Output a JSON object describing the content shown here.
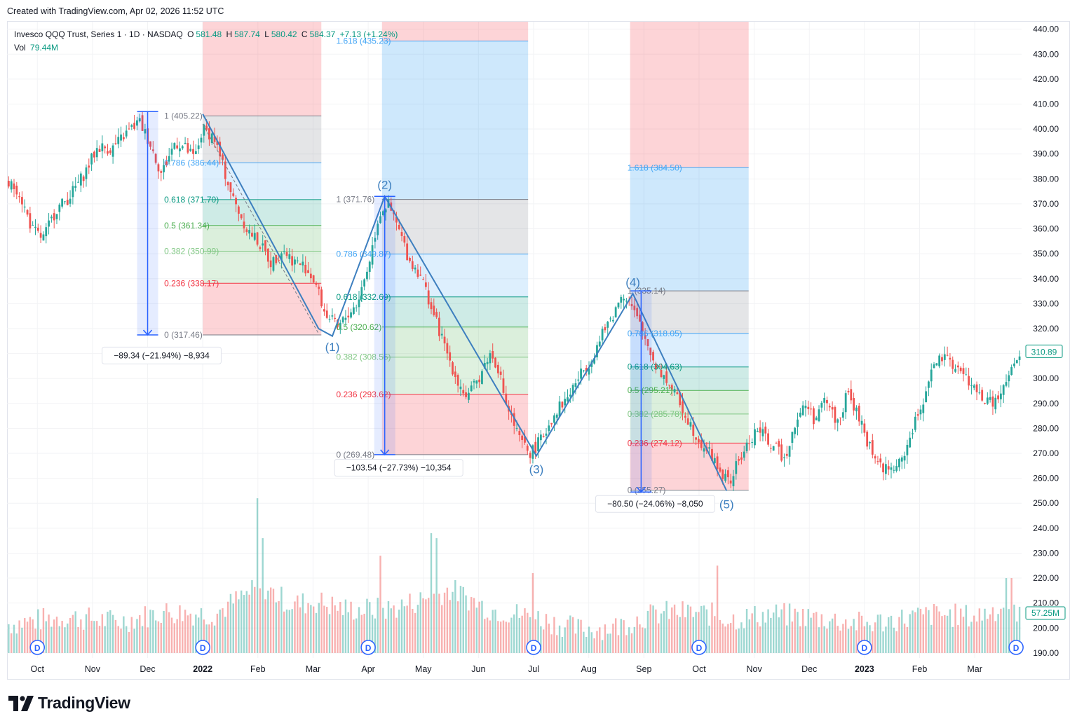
{
  "header": {
    "created": "Created with TradingView.com, Apr 02, 2026 11:52 UTC"
  },
  "legend": {
    "symbol": "Invesco QQQ Trust, Series 1 · 1D · NASDAQ",
    "o_label": "O",
    "o": "581.48",
    "h_label": "H",
    "h": "587.74",
    "l_label": "L",
    "l": "580.42",
    "c_label": "C",
    "c": "584.37",
    "change": "+7.13 (+1.24%)",
    "vol_label": "Vol",
    "vol": "79.44M"
  },
  "colors": {
    "up": "#26a69a",
    "down": "#ef5350",
    "wave": "#3d7fbf",
    "blue_zone": "#d0e6fb",
    "red_zone": "#fcd5d3",
    "grey_zone": "#e3e3e3",
    "price_label": "#089981",
    "measure": "#2962ff"
  },
  "brand": {
    "name": "TradingView"
  },
  "chart_data": {
    "type": "candlestick",
    "title": "Invesco QQQ Trust, Series 1 · 1D · NASDAQ",
    "x_ticks": [
      "Oct",
      "Nov",
      "Dec",
      "2022",
      "Feb",
      "Mar",
      "Apr",
      "May",
      "Jun",
      "Jul",
      "Aug",
      "Sep",
      "Oct",
      "Nov",
      "Dec",
      "2023",
      "Feb",
      "Mar"
    ],
    "x_tick_months": [
      0,
      1,
      2,
      3,
      4,
      5,
      6,
      7,
      8,
      9,
      10,
      11,
      12,
      13,
      14,
      15,
      16,
      17
    ],
    "x_range_months": [
      -0.55,
      17.85
    ],
    "y_ticks": [
      "440.00",
      "430.00",
      "420.00",
      "410.00",
      "400.00",
      "390.00",
      "380.00",
      "370.00",
      "360.00",
      "350.00",
      "340.00",
      "330.00",
      "320.00",
      "310.00",
      "300.00",
      "290.00",
      "280.00",
      "270.00",
      "260.00",
      "250.00",
      "240.00",
      "230.00",
      "220.00",
      "210.00",
      "200.00",
      "190.00"
    ],
    "y_range": [
      188,
      443
    ],
    "last_price": {
      "label": "310.89",
      "value": 310.89
    },
    "last_volume": {
      "label": "57.25M",
      "value": 57.25
    },
    "price_path": [
      [
        -0.55,
        378
      ],
      [
        -0.35,
        376
      ],
      [
        -0.1,
        360
      ],
      [
        0.1,
        356
      ],
      [
        0.35,
        368
      ],
      [
        0.55,
        372
      ],
      [
        0.85,
        382
      ],
      [
        1.1,
        393
      ],
      [
        1.35,
        392
      ],
      [
        1.6,
        398
      ],
      [
        1.85,
        403
      ],
      [
        2.05,
        394
      ],
      [
        2.25,
        382
      ],
      [
        2.5,
        395
      ],
      [
        2.7,
        392
      ],
      [
        2.85,
        388
      ],
      [
        3.0,
        400
      ],
      [
        3.2,
        397
      ],
      [
        3.35,
        386
      ],
      [
        3.55,
        372
      ],
      [
        3.8,
        360
      ],
      [
        4.0,
        355
      ],
      [
        4.25,
        346
      ],
      [
        4.45,
        352
      ],
      [
        4.65,
        347
      ],
      [
        4.85,
        345
      ],
      [
        5.05,
        338
      ],
      [
        5.2,
        327
      ],
      [
        5.45,
        320
      ],
      [
        5.6,
        325
      ],
      [
        5.8,
        330
      ],
      [
        6.0,
        345
      ],
      [
        6.2,
        366
      ],
      [
        6.35,
        370
      ],
      [
        6.55,
        360
      ],
      [
        6.75,
        347
      ],
      [
        6.95,
        342
      ],
      [
        7.15,
        328
      ],
      [
        7.4,
        312
      ],
      [
        7.6,
        300
      ],
      [
        7.8,
        292
      ],
      [
        8.0,
        300
      ],
      [
        8.2,
        310
      ],
      [
        8.35,
        305
      ],
      [
        8.5,
        290
      ],
      [
        8.75,
        275
      ],
      [
        8.95,
        270
      ],
      [
        9.15,
        276
      ],
      [
        9.4,
        287
      ],
      [
        9.6,
        292
      ],
      [
        9.8,
        300
      ],
      [
        10.05,
        308
      ],
      [
        10.3,
        320
      ],
      [
        10.5,
        328
      ],
      [
        10.6,
        335
      ],
      [
        10.75,
        330
      ],
      [
        10.95,
        320
      ],
      [
        11.2,
        306
      ],
      [
        11.45,
        298
      ],
      [
        11.7,
        288
      ],
      [
        11.95,
        277
      ],
      [
        12.2,
        270
      ],
      [
        12.4,
        262
      ],
      [
        12.55,
        258
      ],
      [
        12.7,
        266
      ],
      [
        12.85,
        272
      ],
      [
        13.05,
        280
      ],
      [
        13.3,
        274
      ],
      [
        13.55,
        268
      ],
      [
        13.75,
        283
      ],
      [
        13.95,
        290
      ],
      [
        14.1,
        283
      ],
      [
        14.3,
        292
      ],
      [
        14.5,
        282
      ],
      [
        14.7,
        294
      ],
      [
        14.9,
        284
      ],
      [
        15.05,
        275
      ],
      [
        15.25,
        266
      ],
      [
        15.45,
        263
      ],
      [
        15.65,
        266
      ],
      [
        15.85,
        278
      ],
      [
        16.05,
        290
      ],
      [
        16.2,
        303
      ],
      [
        16.4,
        308
      ],
      [
        16.6,
        306
      ],
      [
        16.85,
        300
      ],
      [
        17.05,
        294
      ],
      [
        17.25,
        290
      ],
      [
        17.45,
        292
      ],
      [
        17.6,
        300
      ],
      [
        17.75,
        306
      ],
      [
        17.85,
        310
      ]
    ],
    "volume_axis_max": 250,
    "volume_path": [
      [
        -0.55,
        200
      ],
      [
        0.5,
        203
      ],
      [
        1.5,
        201
      ],
      [
        2.3,
        205
      ],
      [
        3.2,
        204
      ],
      [
        3.8,
        212
      ],
      [
        4.1,
        215
      ],
      [
        4.6,
        208
      ],
      [
        5.1,
        209
      ],
      [
        5.6,
        206
      ],
      [
        6.4,
        206
      ],
      [
        7.0,
        210
      ],
      [
        7.5,
        214
      ],
      [
        8.2,
        206
      ],
      [
        9.0,
        203
      ],
      [
        9.8,
        198
      ],
      [
        10.5,
        199
      ],
      [
        11.0,
        203
      ],
      [
        11.5,
        205
      ],
      [
        12.2,
        204
      ],
      [
        12.6,
        202
      ],
      [
        13.3,
        204
      ],
      [
        14.0,
        203
      ],
      [
        15.0,
        200
      ],
      [
        15.6,
        202
      ],
      [
        16.3,
        204
      ],
      [
        17.0,
        203
      ],
      [
        17.5,
        207
      ],
      [
        17.85,
        205
      ]
    ],
    "volume_spikes": [
      [
        4.0,
        252
      ],
      [
        4.1,
        236
      ],
      [
        6.2,
        229
      ],
      [
        7.15,
        238
      ],
      [
        7.25,
        236
      ],
      [
        9.0,
        222
      ],
      [
        12.35,
        225
      ],
      [
        17.55,
        220
      ],
      [
        17.65,
        220
      ]
    ],
    "dividends": {
      "label": "D",
      "months": [
        0,
        3,
        6,
        9,
        12,
        15,
        17.75
      ]
    },
    "wave_line": [
      [
        3.0,
        406
      ],
      [
        5.1,
        320
      ],
      [
        5.35,
        317
      ],
      [
        6.3,
        373
      ],
      [
        9.05,
        269
      ],
      [
        10.8,
        334
      ],
      [
        12.5,
        255
      ]
    ],
    "wave_labels": [
      {
        "label": "(1)",
        "m": 5.35,
        "p": 311
      },
      {
        "label": "(2)",
        "m": 6.3,
        "p": 376
      },
      {
        "label": "(3)",
        "m": 9.05,
        "p": 262
      },
      {
        "label": "(4)",
        "m": 10.8,
        "p": 337
      },
      {
        "label": "(5)",
        "m": 12.5,
        "p": 248
      }
    ],
    "retracements": [
      {
        "zone_months": [
          3.0,
          5.15
        ],
        "extend_to_price": 443,
        "base": 317.46,
        "top": 405.22,
        "label_month": 2.3,
        "levels": [
          {
            "label": "1 (405.22)",
            "value": 405.22,
            "color": "#787b86"
          },
          {
            "label": "0.786 (386.44)",
            "value": 386.44,
            "color": "#42a5f5"
          },
          {
            "label": "0.618 (371.70)",
            "value": 371.7,
            "color": "#089981"
          },
          {
            "label": "0.5 (361.34)",
            "value": 361.34,
            "color": "#4caf50"
          },
          {
            "label": "0.382 (350.99)",
            "value": 350.99,
            "color": "#81c784"
          },
          {
            "label": "0.236 (338.17)",
            "value": 338.17,
            "color": "#f23645"
          },
          {
            "label": "0 (317.46)",
            "value": 317.46,
            "color": "#787b86"
          }
        ]
      },
      {
        "zone_months": [
          6.25,
          8.9
        ],
        "extend_to_price": 443,
        "base": 269.48,
        "top": 371.76,
        "label_month": 5.42,
        "levels": [
          {
            "label": "1.618 (435.23)",
            "value": 435.23,
            "color": "#42a5f5"
          },
          {
            "label": "1 (371.76)",
            "value": 371.76,
            "color": "#787b86"
          },
          {
            "label": "0.786 (349.87)",
            "value": 349.87,
            "color": "#42a5f5"
          },
          {
            "label": "0.618 (332.69)",
            "value": 332.69,
            "color": "#089981"
          },
          {
            "label": "0.5 (320.62)",
            "value": 320.62,
            "color": "#4caf50"
          },
          {
            "label": "0.382 (308.55)",
            "value": 308.55,
            "color": "#81c784"
          },
          {
            "label": "0.236 (293.62)",
            "value": 293.62,
            "color": "#f23645"
          },
          {
            "label": "0 (269.48)",
            "value": 269.48,
            "color": "#787b86"
          }
        ]
      },
      {
        "zone_months": [
          10.75,
          12.9
        ],
        "extend_to_price": 443,
        "base": 255.27,
        "top": 335.14,
        "label_month": 10.7,
        "levels": [
          {
            "label": "1.618 (384.50)",
            "value": 384.5,
            "color": "#42a5f5"
          },
          {
            "label": "1 (335.14)",
            "value": 335.14,
            "color": "#787b86"
          },
          {
            "label": "0.786 (318.05)",
            "value": 318.05,
            "color": "#42a5f5"
          },
          {
            "label": "0.618 (304.63)",
            "value": 304.63,
            "color": "#089981"
          },
          {
            "label": "0.5 (295.21)",
            "value": 295.21,
            "color": "#4caf50"
          },
          {
            "label": "0.382 (285.78)",
            "value": 285.78,
            "color": "#81c784"
          },
          {
            "label": "0.236 (274.12)",
            "value": 274.12,
            "color": "#f23645"
          },
          {
            "label": "0 (255.27)",
            "value": 255.27,
            "color": "#787b86"
          }
        ]
      }
    ],
    "measurements": [
      {
        "label": "−89.34 (−21.94%) −8,934",
        "m": 2.0,
        "from": 407,
        "to": 317.46,
        "box_m": 2.0,
        "box_p": 309.5
      },
      {
        "label": "−103.54 (−27.73%) −10,354",
        "m": 6.3,
        "from": 373,
        "to": 269.48,
        "box_m": 6.3,
        "box_p": 264.5
      },
      {
        "label": "−80.50 (−24.06%) −8,050",
        "m": 10.95,
        "from": 335.14,
        "to": 254.5,
        "box_m": 10.95,
        "box_p": 250
      }
    ]
  }
}
